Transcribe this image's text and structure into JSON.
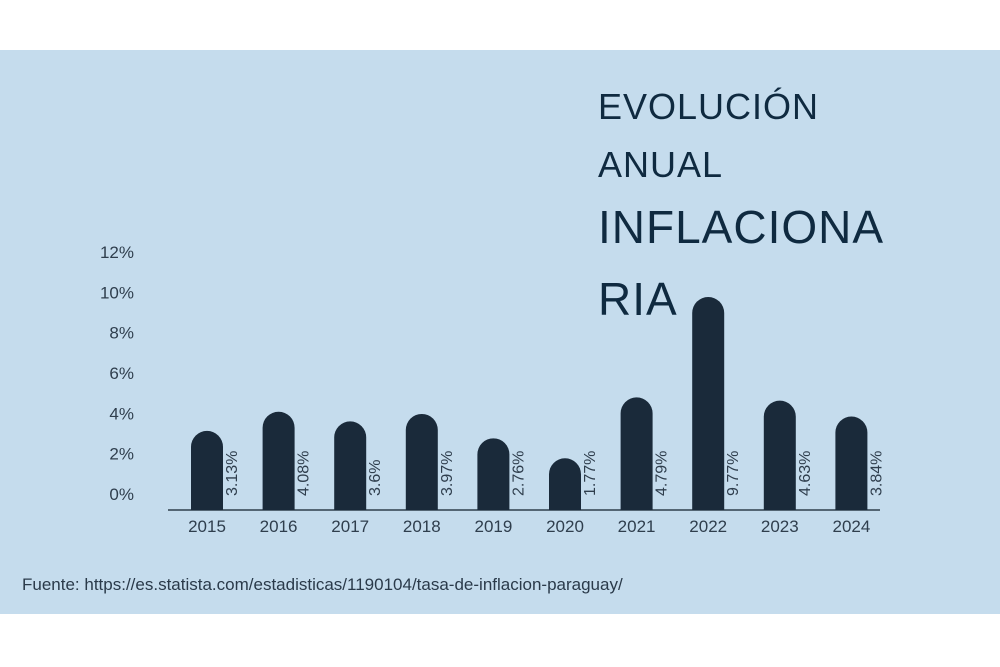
{
  "title": {
    "line1": "EVOLUCIÓN",
    "line2": "ANUAL",
    "line3": "INFLACIONA",
    "line4": "RIA"
  },
  "source": "Fuente: https://es.statista.com/estadisticas/1190104/tasa-de-inflacion-paraguay/",
  "colors": {
    "background": "#c5dced",
    "bar": "#1a2a3a",
    "text": "#0f2a40"
  },
  "chart_data": {
    "type": "bar",
    "categories": [
      "2015",
      "2016",
      "2017",
      "2018",
      "2019",
      "2020",
      "2021",
      "2022",
      "2023",
      "2024"
    ],
    "values": [
      3.13,
      4.08,
      3.6,
      3.97,
      2.76,
      1.77,
      4.79,
      9.77,
      4.63,
      3.84
    ],
    "data_labels": [
      "3.13%",
      "4.08%",
      "3.6%",
      "3.97%",
      "2.76%",
      "1.77%",
      "4.79%",
      "9.77%",
      "4.63%",
      "3.84%"
    ],
    "yticks": [
      "0%",
      "2%",
      "4%",
      "6%",
      "8%",
      "10%",
      "12%"
    ],
    "ylim": [
      0,
      12
    ],
    "grid": false,
    "legend": "none"
  }
}
